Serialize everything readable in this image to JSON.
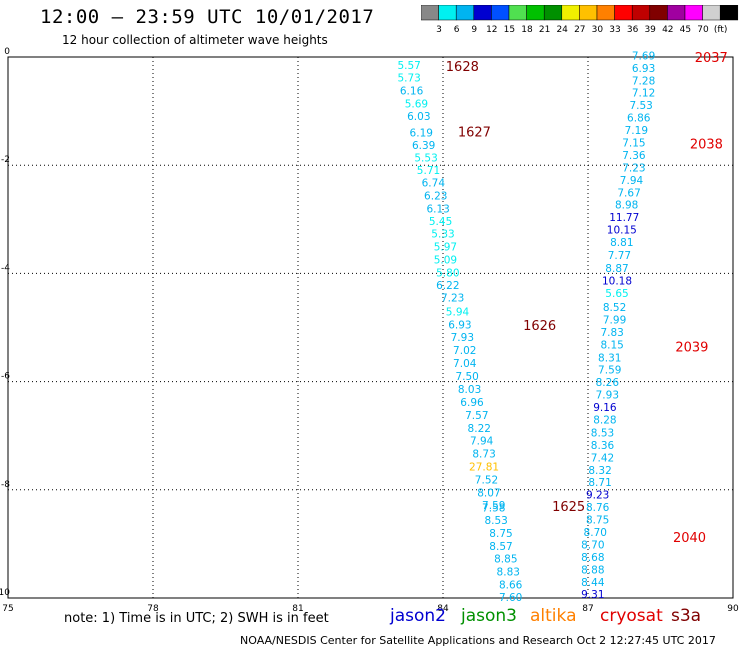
{
  "header": {
    "title": "12:00 — 23:59 UTC 10/01/2017",
    "subtitle": "12 hour collection of altimeter wave heights"
  },
  "colorbar": {
    "colors": [
      "#888888",
      "#00f0f0",
      "#00b4f0",
      "#0000d0",
      "#0050ff",
      "#50e050",
      "#00c000",
      "#009000",
      "#f0f000",
      "#ffc000",
      "#ff8000",
      "#ff0000",
      "#c00000",
      "#800000",
      "#a000a0",
      "#ff00ff",
      "#d0d0d0",
      "#000000"
    ],
    "labels": [
      "3",
      "6",
      "9",
      "12",
      "15",
      "18",
      "21",
      "24",
      "27",
      "30",
      "33",
      "36",
      "39",
      "42",
      "45",
      "70",
      "(ft)"
    ]
  },
  "axes": {
    "x_ticks": [
      "75",
      "78",
      "81",
      "84",
      "87",
      "90"
    ],
    "y_ticks": [
      "0",
      "-2",
      "-4",
      "-6",
      "-8",
      "-10"
    ]
  },
  "chart_data": {
    "type": "scatter",
    "xlim": [
      75,
      90
    ],
    "ylim": [
      -10,
      0
    ],
    "grid": true,
    "units": "ft",
    "tracks": [
      {
        "values": [
          {
            "x": 83.3,
            "y": -0.15,
            "v": "5.57"
          },
          {
            "x": 83.3,
            "y": -0.38,
            "v": "5.73"
          },
          {
            "x": 83.35,
            "y": -0.62,
            "v": "6.16"
          },
          {
            "x": 83.45,
            "y": -0.86,
            "v": "5.69"
          },
          {
            "x": 83.5,
            "y": -1.09,
            "v": "6.03"
          },
          {
            "x": 83.55,
            "y": -1.4,
            "v": "6.19"
          },
          {
            "x": 83.6,
            "y": -1.63,
            "v": "6.39"
          },
          {
            "x": 83.65,
            "y": -1.86,
            "v": "5.53"
          },
          {
            "x": 83.7,
            "y": -2.09,
            "v": "5.71"
          },
          {
            "x": 83.8,
            "y": -2.32,
            "v": "6.74"
          },
          {
            "x": 83.85,
            "y": -2.56,
            "v": "6.23"
          },
          {
            "x": 83.9,
            "y": -2.8,
            "v": "6.13"
          },
          {
            "x": 83.95,
            "y": -3.03,
            "v": "5.45"
          },
          {
            "x": 84.0,
            "y": -3.26,
            "v": "5.33"
          },
          {
            "x": 84.05,
            "y": -3.5,
            "v": "5.97"
          },
          {
            "x": 84.05,
            "y": -3.74,
            "v": "5.09"
          },
          {
            "x": 84.1,
            "y": -3.98,
            "v": "5.80"
          },
          {
            "x": 84.1,
            "y": -4.21,
            "v": "6.22"
          },
          {
            "x": 84.2,
            "y": -4.45,
            "v": "7.23"
          },
          {
            "x": 84.3,
            "y": -4.7,
            "v": "5.94"
          },
          {
            "x": 84.35,
            "y": -4.94,
            "v": "6.93"
          },
          {
            "x": 84.4,
            "y": -5.18,
            "v": "7.93"
          },
          {
            "x": 84.45,
            "y": -5.42,
            "v": "7.02"
          },
          {
            "x": 84.45,
            "y": -5.66,
            "v": "7.04"
          },
          {
            "x": 84.5,
            "y": -5.9,
            "v": "7.50"
          },
          {
            "x": 84.55,
            "y": -6.14,
            "v": "8.03"
          },
          {
            "x": 84.6,
            "y": -6.38,
            "v": "6.96"
          },
          {
            "x": 84.7,
            "y": -6.62,
            "v": "7.57"
          },
          {
            "x": 84.75,
            "y": -6.86,
            "v": "8.22"
          },
          {
            "x": 84.8,
            "y": -7.09,
            "v": "7.94"
          },
          {
            "x": 84.85,
            "y": -7.33,
            "v": "8.73"
          },
          {
            "x": 84.85,
            "y": -7.57,
            "v": "27.81"
          },
          {
            "x": 84.9,
            "y": -7.81,
            "v": "7.52"
          },
          {
            "x": 84.95,
            "y": -8.05,
            "v": "8.07"
          },
          {
            "x": 85.05,
            "y": -8.28,
            "v": "7.59"
          },
          {
            "x": 85.05,
            "y": -8.33,
            "v": "7.58"
          },
          {
            "x": 85.1,
            "y": -8.56,
            "v": "8.53"
          },
          {
            "x": 85.2,
            "y": -8.8,
            "v": "8.75"
          },
          {
            "x": 85.2,
            "y": -9.04,
            "v": "8.57"
          },
          {
            "x": 85.3,
            "y": -9.27,
            "v": "8.85"
          },
          {
            "x": 85.35,
            "y": -9.51,
            "v": "8.83"
          },
          {
            "x": 85.4,
            "y": -9.75,
            "v": "8.66"
          },
          {
            "x": 85.4,
            "y": -9.98,
            "v": "7.60"
          }
        ]
      },
      {
        "values": [
          {
            "x": 88.15,
            "y": 0.03,
            "v": "7.69"
          },
          {
            "x": 88.15,
            "y": -0.2,
            "v": "6.93"
          },
          {
            "x": 88.15,
            "y": -0.43,
            "v": "7.28"
          },
          {
            "x": 88.15,
            "y": -0.66,
            "v": "7.12"
          },
          {
            "x": 88.1,
            "y": -0.89,
            "v": "7.53"
          },
          {
            "x": 88.05,
            "y": -1.12,
            "v": "6.86"
          },
          {
            "x": 88.0,
            "y": -1.35,
            "v": "7.19"
          },
          {
            "x": 87.95,
            "y": -1.58,
            "v": "7.15"
          },
          {
            "x": 87.95,
            "y": -1.81,
            "v": "7.36"
          },
          {
            "x": 87.95,
            "y": -2.04,
            "v": "7.23"
          },
          {
            "x": 87.9,
            "y": -2.27,
            "v": "7.94"
          },
          {
            "x": 87.85,
            "y": -2.5,
            "v": "7.67"
          },
          {
            "x": 87.8,
            "y": -2.73,
            "v": "8.98"
          },
          {
            "x": 87.75,
            "y": -2.96,
            "v": "11.77"
          },
          {
            "x": 87.7,
            "y": -3.19,
            "v": "10.15"
          },
          {
            "x": 87.7,
            "y": -3.42,
            "v": "8.81"
          },
          {
            "x": 87.65,
            "y": -3.66,
            "v": "7.77"
          },
          {
            "x": 87.6,
            "y": -3.9,
            "v": "8.87"
          },
          {
            "x": 87.6,
            "y": -4.13,
            "v": "10.18"
          },
          {
            "x": 87.6,
            "y": -4.36,
            "v": "5.65"
          },
          {
            "x": 87.55,
            "y": -4.62,
            "v": "8.52"
          },
          {
            "x": 87.55,
            "y": -4.85,
            "v": "7.99"
          },
          {
            "x": 87.5,
            "y": -5.08,
            "v": "7.83"
          },
          {
            "x": 87.5,
            "y": -5.31,
            "v": "8.15"
          },
          {
            "x": 87.45,
            "y": -5.55,
            "v": "8.31"
          },
          {
            "x": 87.45,
            "y": -5.78,
            "v": "7.59"
          },
          {
            "x": 87.4,
            "y": -6.01,
            "v": "8.26"
          },
          {
            "x": 87.4,
            "y": -6.24,
            "v": "7.93"
          },
          {
            "x": 87.35,
            "y": -6.47,
            "v": "9.16"
          },
          {
            "x": 87.35,
            "y": -6.7,
            "v": "8.28"
          },
          {
            "x": 87.3,
            "y": -6.94,
            "v": "8.53"
          },
          {
            "x": 87.3,
            "y": -7.17,
            "v": "8.36"
          },
          {
            "x": 87.3,
            "y": -7.4,
            "v": "7.42"
          },
          {
            "x": 87.25,
            "y": -7.63,
            "v": "8.32"
          },
          {
            "x": 87.25,
            "y": -7.86,
            "v": "8.71"
          },
          {
            "x": 87.2,
            "y": -8.09,
            "v": "9.23"
          },
          {
            "x": 87.2,
            "y": -8.32,
            "v": "8.76"
          },
          {
            "x": 87.2,
            "y": -8.55,
            "v": "8.75"
          },
          {
            "x": 87.15,
            "y": -8.78,
            "v": "8.70"
          },
          {
            "x": 87.1,
            "y": -9.01,
            "v": "8.70"
          },
          {
            "x": 87.1,
            "y": -9.24,
            "v": "8.68"
          },
          {
            "x": 87.1,
            "y": -9.47,
            "v": "8.88"
          },
          {
            "x": 87.1,
            "y": -9.7,
            "v": "8.44"
          },
          {
            "x": 87.1,
            "y": -9.93,
            "v": "9.31"
          }
        ]
      }
    ],
    "time_labels": [
      {
        "x": 84.4,
        "y": -0.17,
        "t": "1628",
        "color": "#800000"
      },
      {
        "x": 84.65,
        "y": -1.38,
        "t": "1627",
        "color": "#800000"
      },
      {
        "x": 86.0,
        "y": -4.95,
        "t": "1626",
        "color": "#800000"
      },
      {
        "x": 86.6,
        "y": -8.3,
        "t": "1625",
        "color": "#800000"
      },
      {
        "x": 89.55,
        "y": 0.0,
        "t": "2037",
        "color": "#e00000"
      },
      {
        "x": 89.45,
        "y": -1.6,
        "t": "2038",
        "color": "#e00000"
      },
      {
        "x": 89.15,
        "y": -5.35,
        "t": "2039",
        "color": "#e00000"
      },
      {
        "x": 89.1,
        "y": -8.87,
        "t": "2040",
        "color": "#e00000"
      }
    ]
  },
  "legend": {
    "note": "note: 1) Time is in UTC; 2) SWH is in feet",
    "items": [
      {
        "label": "jason2",
        "color": "#0000d0"
      },
      {
        "label": "jason3",
        "color": "#009000"
      },
      {
        "label": "altika",
        "color": "#ff8000"
      },
      {
        "label": "cryosat",
        "color": "#e00000"
      },
      {
        "label": "s3a",
        "color": "#800000"
      }
    ]
  },
  "footer": {
    "text": "NOAA/NESDIS Center for Satellite Applications and Research    Oct  2 12:27:45 UTC 2017"
  }
}
